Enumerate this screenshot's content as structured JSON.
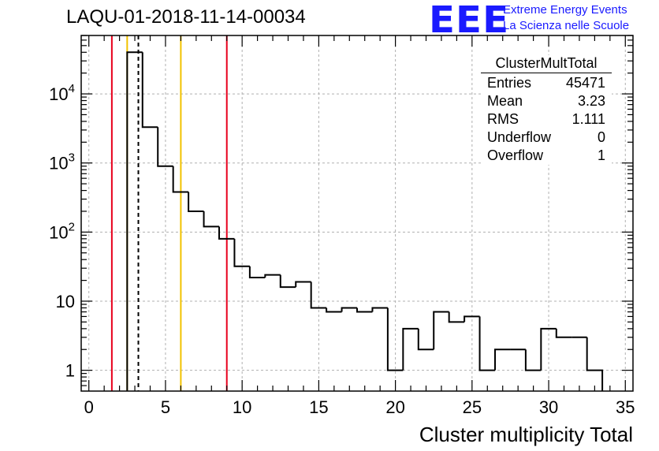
{
  "header": {
    "run_title": "LAQU-01-2018-11-14-00034"
  },
  "logo": {
    "letters": "EEE",
    "line1": "Extreme Energy Events",
    "line2": "La Scienza nelle Scuole",
    "color": "#1a1aff"
  },
  "stats": {
    "title": "ClusterMultTotal",
    "rows": [
      {
        "label": "Entries",
        "value": "45471"
      },
      {
        "label": "Mean",
        "value": "3.23"
      },
      {
        "label": "RMS",
        "value": "1.111"
      },
      {
        "label": "Underflow",
        "value": "0"
      },
      {
        "label": "Overflow",
        "value": "1"
      }
    ]
  },
  "chart_data": {
    "type": "histogram",
    "title": "LAQU-01-2018-11-14-00034",
    "xlabel": "Cluster multiplicity Total",
    "ylabel": "",
    "y_scale": "log",
    "xlim": [
      -0.5,
      35.5
    ],
    "ylim": [
      0.5,
      70000
    ],
    "bin_width": 1,
    "bin_low_edges": [
      2.5,
      3.5,
      4.5,
      5.5,
      6.5,
      7.5,
      8.5,
      9.5,
      10.5,
      11.5,
      12.5,
      13.5,
      14.5,
      15.5,
      16.5,
      17.5,
      18.5,
      19.5,
      20.5,
      21.5,
      22.5,
      23.5,
      24.5,
      25.5,
      26.5,
      27.5,
      28.5,
      29.5,
      30.5,
      31.5,
      32.5
    ],
    "values": [
      40000,
      3300,
      900,
      380,
      200,
      120,
      80,
      32,
      22,
      24,
      16,
      19,
      8,
      7,
      8,
      7,
      8,
      1,
      4,
      2,
      7,
      5,
      6,
      1,
      2,
      2,
      1,
      4,
      3,
      3,
      1
    ],
    "x_ticks": [
      0,
      5,
      10,
      15,
      20,
      25,
      30,
      35
    ],
    "x_tick_labels": [
      "0",
      "5",
      "10",
      "15",
      "20",
      "25",
      "30",
      "35"
    ],
    "y_ticks": [
      1,
      10,
      100,
      1000,
      10000
    ],
    "y_tick_labels": [
      {
        "base": "1",
        "exp": ""
      },
      {
        "base": "10",
        "exp": ""
      },
      {
        "base": "10",
        "exp": "2"
      },
      {
        "base": "10",
        "exp": "3"
      },
      {
        "base": "10",
        "exp": "4"
      }
    ],
    "grid": true,
    "legend": "top-right",
    "vertical_lines": [
      {
        "x": 1.5,
        "color": "#e8001c",
        "style": "solid"
      },
      {
        "x": 2.5,
        "color": "#f2c200",
        "style": "solid"
      },
      {
        "x": 3.23,
        "color": "#000000",
        "style": "dashed"
      },
      {
        "x": 6.0,
        "color": "#f2c200",
        "style": "solid"
      },
      {
        "x": 9.0,
        "color": "#e8001c",
        "style": "solid"
      }
    ]
  }
}
